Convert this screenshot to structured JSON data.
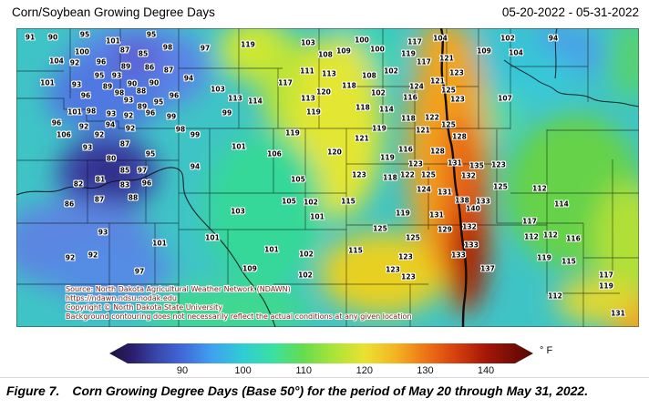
{
  "header": {
    "title": "Corn/Soybean Growing Degree Days",
    "date_range": "05-20-2022 - 05-31-2022"
  },
  "map": {
    "source_lines": [
      "Source: North Dakota Agricultural Weather Network (NDAWN)",
      "https://ndawn.ndsu.nodak.edu",
      "Copyright © North Dakota State University",
      "Background contouring does not necessarily reflect the actual conditions at any given location"
    ]
  },
  "colorbar": {
    "unit": "° F",
    "ticks": [
      90,
      100,
      110,
      120,
      130,
      140
    ],
    "gradient": [
      {
        "v": 78,
        "c": "#1f1238"
      },
      {
        "v": 82,
        "c": "#2c2070"
      },
      {
        "v": 86,
        "c": "#3a49ae"
      },
      {
        "v": 90,
        "c": "#4168d8"
      },
      {
        "v": 95,
        "c": "#3fa2ee"
      },
      {
        "v": 100,
        "c": "#2fcdd5"
      },
      {
        "v": 105,
        "c": "#3be0a0"
      },
      {
        "v": 110,
        "c": "#66dc4e"
      },
      {
        "v": 115,
        "c": "#abe438"
      },
      {
        "v": 120,
        "c": "#e9e232"
      },
      {
        "v": 125,
        "c": "#f5b524"
      },
      {
        "v": 130,
        "c": "#ee7517"
      },
      {
        "v": 135,
        "c": "#d6400e"
      },
      {
        "v": 140,
        "c": "#a51708"
      },
      {
        "v": 145,
        "c": "#700c04"
      },
      {
        "v": 147,
        "c": "#5e0a03"
      }
    ]
  },
  "caption": {
    "label": "Figure 7.",
    "text": "Corn Growing Degree Days (Base 50°) for the period of May 20 through May 31, 2022."
  },
  "chart_data": {
    "type": "heatmap",
    "title": "Corn/Soybean Growing Degree Days",
    "date_range": "05-20-2022 - 05-31-2022",
    "unit": "°F (Growing Degree Days, Base 50°)",
    "colorbar_ticks": [
      90,
      100,
      110,
      120,
      130,
      140
    ],
    "value_range": [
      80,
      140
    ],
    "legend_position": "bottom",
    "stations_format": "[gdd_value, x_px, y_px]",
    "stations": [
      [
        91,
        33,
        41
      ],
      [
        90,
        58,
        41
      ],
      [
        95,
        93,
        38
      ],
      [
        101,
        124,
        45
      ],
      [
        95,
        166,
        38
      ],
      [
        98,
        184,
        52
      ],
      [
        100,
        90,
        57
      ],
      [
        87,
        137,
        55
      ],
      [
        85,
        157,
        59
      ],
      [
        104,
        62,
        67
      ],
      [
        92,
        82,
        69
      ],
      [
        96,
        111,
        68
      ],
      [
        89,
        138,
        73
      ],
      [
        86,
        164,
        74
      ],
      [
        87,
        185,
        77
      ],
      [
        95,
        109,
        83
      ],
      [
        93,
        128,
        83
      ],
      [
        101,
        52,
        91
      ],
      [
        93,
        84,
        93
      ],
      [
        89,
        118,
        95
      ],
      [
        90,
        145,
        92
      ],
      [
        90,
        169,
        91
      ],
      [
        96,
        94,
        105
      ],
      [
        98,
        131,
        102
      ],
      [
        88,
        155,
        100
      ],
      [
        93,
        141,
        110
      ],
      [
        96,
        191,
        105
      ],
      [
        95,
        174,
        112
      ],
      [
        89,
        156,
        117
      ],
      [
        101,
        82,
        123
      ],
      [
        98,
        100,
        122
      ],
      [
        93,
        122,
        125
      ],
      [
        92,
        141,
        127
      ],
      [
        96,
        165,
        124
      ],
      [
        99,
        188,
        128
      ],
      [
        96,
        62,
        135
      ],
      [
        92,
        92,
        139
      ],
      [
        94,
        121,
        137
      ],
      [
        92,
        143,
        141
      ],
      [
        106,
        70,
        148
      ],
      [
        92,
        109,
        148
      ],
      [
        93,
        96,
        162
      ],
      [
        87,
        137,
        158
      ],
      [
        95,
        165,
        169
      ],
      [
        80,
        122,
        174
      ],
      [
        85,
        137,
        187
      ],
      [
        97,
        156,
        187
      ],
      [
        82,
        86,
        202
      ],
      [
        81,
        110,
        197
      ],
      [
        83,
        137,
        203
      ],
      [
        96,
        161,
        201
      ],
      [
        87,
        109,
        219
      ],
      [
        88,
        146,
        217
      ],
      [
        86,
        76,
        224
      ],
      [
        93,
        113,
        255
      ],
      [
        101,
        175,
        267
      ],
      [
        92,
        77,
        283
      ],
      [
        92,
        102,
        280
      ],
      [
        97,
        153,
        298
      ],
      [
        97,
        225,
        53
      ],
      [
        119,
        272,
        49
      ],
      [
        103,
        338,
        47
      ],
      [
        108,
        357,
        60
      ],
      [
        109,
        377,
        56
      ],
      [
        94,
        207,
        86
      ],
      [
        111,
        337,
        78
      ],
      [
        113,
        361,
        81
      ],
      [
        117,
        313,
        91
      ],
      [
        103,
        239,
        98
      ],
      [
        120,
        355,
        101
      ],
      [
        113,
        258,
        108
      ],
      [
        114,
        280,
        111
      ],
      [
        113,
        338,
        108
      ],
      [
        99,
        249,
        124
      ],
      [
        119,
        344,
        123
      ],
      [
        98,
        198,
        142
      ],
      [
        99,
        214,
        148
      ],
      [
        101,
        262,
        161
      ],
      [
        106,
        301,
        169
      ],
      [
        119,
        321,
        146
      ],
      [
        120,
        367,
        167
      ],
      [
        94,
        214,
        183
      ],
      [
        105,
        327,
        197
      ],
      [
        105,
        317,
        221
      ],
      [
        102,
        341,
        222
      ],
      [
        101,
        348,
        238
      ],
      [
        103,
        261,
        232
      ],
      [
        101,
        233,
        261
      ],
      [
        101,
        298,
        274
      ],
      [
        102,
        336,
        279
      ],
      [
        109,
        274,
        295
      ],
      [
        102,
        335,
        302
      ],
      [
        100,
        397,
        44
      ],
      [
        104,
        483,
        42
      ],
      [
        117,
        455,
        46
      ],
      [
        100,
        414,
        54
      ],
      [
        119,
        448,
        59
      ],
      [
        109,
        531,
        56
      ],
      [
        121,
        490,
        64
      ],
      [
        117,
        465,
        68
      ],
      [
        102,
        429,
        78
      ],
      [
        123,
        501,
        80
      ],
      [
        108,
        405,
        83
      ],
      [
        118,
        383,
        94
      ],
      [
        124,
        457,
        95
      ],
      [
        121,
        480,
        89
      ],
      [
        125,
        492,
        99
      ],
      [
        102,
        415,
        102
      ],
      [
        116,
        450,
        107
      ],
      [
        123,
        502,
        109
      ],
      [
        107,
        554,
        108
      ],
      [
        118,
        398,
        118
      ],
      [
        114,
        424,
        120
      ],
      [
        118,
        448,
        130
      ],
      [
        122,
        474,
        129
      ],
      [
        125,
        492,
        137
      ],
      [
        119,
        416,
        141
      ],
      [
        121,
        464,
        143
      ],
      [
        121,
        397,
        152
      ],
      [
        128,
        504,
        150
      ],
      [
        116,
        445,
        164
      ],
      [
        128,
        480,
        166
      ],
      [
        119,
        425,
        173
      ],
      [
        131,
        499,
        179
      ],
      [
        135,
        523,
        182
      ],
      [
        123,
        547,
        181
      ],
      [
        123,
        456,
        180
      ],
      [
        123,
        394,
        192
      ],
      [
        118,
        428,
        195
      ],
      [
        122,
        447,
        192
      ],
      [
        125,
        470,
        192
      ],
      [
        132,
        514,
        193
      ],
      [
        124,
        465,
        208
      ],
      [
        131,
        488,
        211
      ],
      [
        125,
        549,
        205
      ],
      [
        115,
        382,
        221
      ],
      [
        138,
        507,
        220
      ],
      [
        133,
        530,
        221
      ],
      [
        140,
        519,
        229
      ],
      [
        119,
        442,
        234
      ],
      [
        131,
        479,
        236
      ],
      [
        125,
        417,
        251
      ],
      [
        129,
        488,
        252
      ],
      [
        132,
        515,
        249
      ],
      [
        125,
        453,
        261
      ],
      [
        115,
        390,
        275
      ],
      [
        133,
        517,
        269
      ],
      [
        133,
        503,
        280
      ],
      [
        123,
        445,
        282
      ],
      [
        137,
        535,
        295
      ],
      [
        123,
        431,
        296
      ],
      [
        123,
        448,
        304
      ],
      [
        102,
        557,
        42
      ],
      [
        94,
        607,
        42
      ],
      [
        104,
        566,
        58
      ],
      [
        112,
        592,
        207
      ],
      [
        114,
        616,
        224
      ],
      [
        117,
        581,
        243
      ],
      [
        112,
        583,
        260
      ],
      [
        112,
        604,
        258
      ],
      [
        116,
        629,
        262
      ],
      [
        119,
        597,
        283
      ],
      [
        115,
        624,
        287
      ],
      [
        117,
        665,
        302
      ],
      [
        119,
        665,
        314
      ],
      [
        112,
        609,
        325
      ],
      [
        131,
        678,
        344
      ]
    ]
  }
}
